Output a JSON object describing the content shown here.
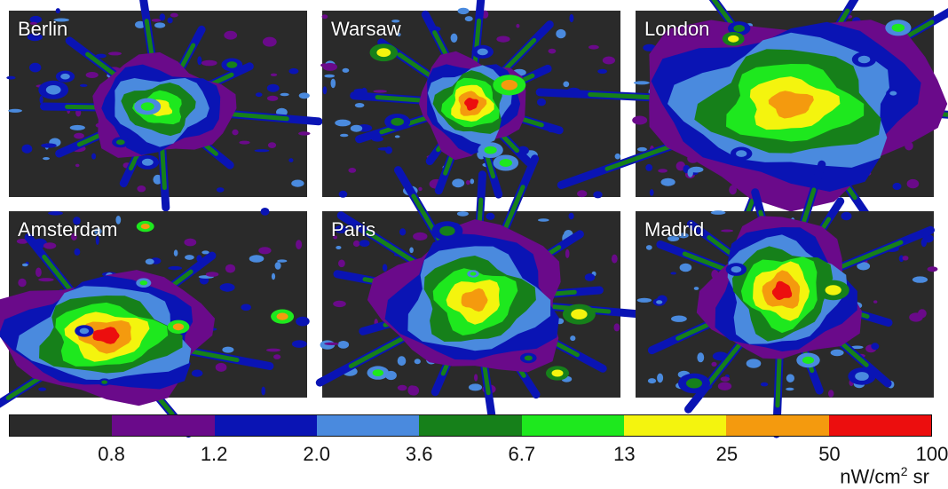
{
  "panels": [
    {
      "id": "berlin",
      "label": "Berlin",
      "peak": "yellow"
    },
    {
      "id": "warsaw",
      "label": "Warsaw",
      "peak": "red"
    },
    {
      "id": "london",
      "label": "London",
      "peak": "orange"
    },
    {
      "id": "amsterdam",
      "label": "Amsterdam",
      "peak": "red"
    },
    {
      "id": "paris",
      "label": "Paris",
      "peak": "orange"
    },
    {
      "id": "madrid",
      "label": "Madrid",
      "peak": "red"
    }
  ],
  "colorbar": {
    "colors": [
      "#2a2a2a",
      "#6a0a8a",
      "#0a14b4",
      "#4a8ade",
      "#16801a",
      "#1ee81e",
      "#f4f40e",
      "#f49a0e",
      "#ec0e0e"
    ],
    "ticks": [
      "0.8",
      "1.2",
      "2.0",
      "3.6",
      "6.7",
      "13",
      "25",
      "50",
      "100"
    ],
    "unit_main": "nW/cm",
    "unit_sup": "2",
    "unit_tail": " sr"
  }
}
